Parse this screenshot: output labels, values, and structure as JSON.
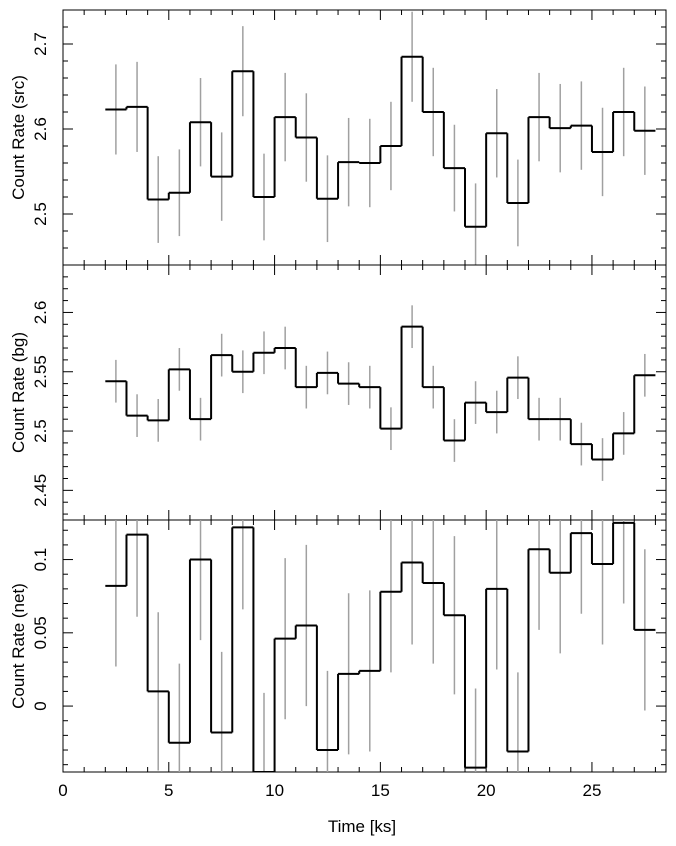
{
  "chart_data": [
    {
      "type": "step",
      "ylabel": "Count Rate (src)",
      "ylim": [
        2.44,
        2.74
      ],
      "yticks": [
        2.5,
        2.6,
        2.7
      ],
      "ytick_labels": [
        "2.5",
        "2.6",
        "2.7"
      ],
      "bin_edges": [
        2.0,
        3.0,
        4.0,
        5.0,
        6.0,
        7.0,
        8.0,
        9.0,
        10.0,
        11.0,
        12.0,
        13.0,
        14.0,
        15.0,
        16.0,
        17.0,
        18.0,
        19.0,
        20.0,
        21.0,
        22.0,
        23.0,
        24.0,
        25.0,
        26.0,
        27.0,
        28.0
      ],
      "x_centers": [
        2.5,
        3.5,
        4.5,
        5.5,
        6.5,
        7.5,
        8.5,
        9.5,
        10.5,
        11.5,
        12.5,
        13.5,
        14.5,
        15.5,
        16.5,
        17.5,
        18.5,
        19.5,
        20.5,
        21.5,
        22.5,
        23.5,
        24.5,
        25.5,
        26.5,
        27.5
      ],
      "values": [
        2.623,
        2.626,
        2.517,
        2.525,
        2.608,
        2.544,
        2.668,
        2.52,
        2.614,
        2.59,
        2.518,
        2.561,
        2.56,
        2.58,
        2.685,
        2.62,
        2.554,
        2.485,
        2.595,
        2.513,
        2.614,
        2.601,
        2.604,
        2.573,
        2.62,
        2.598
      ],
      "errors": [
        0.053,
        0.053,
        0.051,
        0.051,
        0.052,
        0.052,
        0.053,
        0.051,
        0.052,
        0.052,
        0.051,
        0.052,
        0.052,
        0.052,
        0.053,
        0.052,
        0.051,
        0.051,
        0.052,
        0.051,
        0.052,
        0.052,
        0.052,
        0.052,
        0.052,
        0.052
      ]
    },
    {
      "type": "step",
      "ylabel": "Count Rate (bg)",
      "ylim": [
        2.425,
        2.64
      ],
      "yticks": [
        2.45,
        2.5,
        2.55,
        2.6
      ],
      "ytick_labels": [
        "2.45",
        "2.5",
        "2.55",
        "2.6"
      ],
      "bin_edges": [
        2.0,
        3.0,
        4.0,
        5.0,
        6.0,
        7.0,
        8.0,
        9.0,
        10.0,
        11.0,
        12.0,
        13.0,
        14.0,
        15.0,
        16.0,
        17.0,
        18.0,
        19.0,
        20.0,
        21.0,
        22.0,
        23.0,
        24.0,
        25.0,
        26.0,
        27.0,
        28.0
      ],
      "x_centers": [
        2.5,
        3.5,
        4.5,
        5.5,
        6.5,
        7.5,
        8.5,
        9.5,
        10.5,
        11.5,
        12.5,
        13.5,
        14.5,
        15.5,
        16.5,
        17.5,
        18.5,
        19.5,
        20.5,
        21.5,
        22.5,
        23.5,
        24.5,
        25.5,
        26.5,
        27.5
      ],
      "values": [
        2.542,
        2.513,
        2.509,
        2.552,
        2.51,
        2.564,
        2.55,
        2.566,
        2.57,
        2.537,
        2.549,
        2.54,
        2.537,
        2.502,
        2.588,
        2.537,
        2.492,
        2.524,
        2.516,
        2.545,
        2.51,
        2.51,
        2.489,
        2.476,
        2.498,
        2.547
      ],
      "errors": [
        0.018,
        0.018,
        0.018,
        0.018,
        0.018,
        0.018,
        0.018,
        0.018,
        0.018,
        0.018,
        0.018,
        0.018,
        0.018,
        0.018,
        0.018,
        0.018,
        0.018,
        0.018,
        0.018,
        0.018,
        0.018,
        0.018,
        0.018,
        0.018,
        0.018,
        0.018
      ]
    },
    {
      "type": "step",
      "ylabel": "Count Rate (net)",
      "xlabel": "Time [ks]",
      "xlim": [
        0,
        28.5
      ],
      "xticks": [
        0,
        5,
        10,
        15,
        20,
        25
      ],
      "xtick_labels": [
        "0",
        "5",
        "10",
        "15",
        "20",
        "25"
      ],
      "ylim": [
        -0.045,
        0.127
      ],
      "yticks": [
        0,
        0.05,
        0.1
      ],
      "ytick_labels": [
        "0",
        "0.05",
        "0.1"
      ],
      "bin_edges": [
        2.0,
        3.0,
        4.0,
        5.0,
        6.0,
        7.0,
        8.0,
        9.0,
        10.0,
        11.0,
        12.0,
        13.0,
        14.0,
        15.0,
        16.0,
        17.0,
        18.0,
        19.0,
        20.0,
        21.0,
        22.0,
        23.0,
        24.0,
        25.0,
        26.0,
        27.0,
        28.0
      ],
      "x_centers": [
        2.5,
        3.5,
        4.5,
        5.5,
        6.5,
        7.5,
        8.5,
        9.5,
        10.5,
        11.5,
        12.5,
        13.5,
        14.5,
        15.5,
        16.5,
        17.5,
        18.5,
        19.5,
        20.5,
        21.5,
        22.5,
        23.5,
        24.5,
        25.5,
        26.5,
        27.5
      ],
      "values": [
        0.082,
        0.117,
        0.01,
        -0.025,
        0.1,
        -0.018,
        0.122,
        -0.045,
        0.046,
        0.055,
        -0.03,
        0.022,
        0.024,
        0.078,
        0.098,
        0.084,
        0.062,
        -0.042,
        0.08,
        -0.031,
        0.107,
        0.091,
        0.118,
        0.097,
        0.125,
        0.052
      ],
      "errors": [
        0.055,
        0.056,
        0.054,
        0.054,
        0.055,
        0.055,
        0.056,
        0.054,
        0.055,
        0.055,
        0.054,
        0.055,
        0.055,
        0.055,
        0.056,
        0.055,
        0.054,
        0.054,
        0.055,
        0.054,
        0.055,
        0.055,
        0.055,
        0.055,
        0.055,
        0.055
      ]
    }
  ]
}
